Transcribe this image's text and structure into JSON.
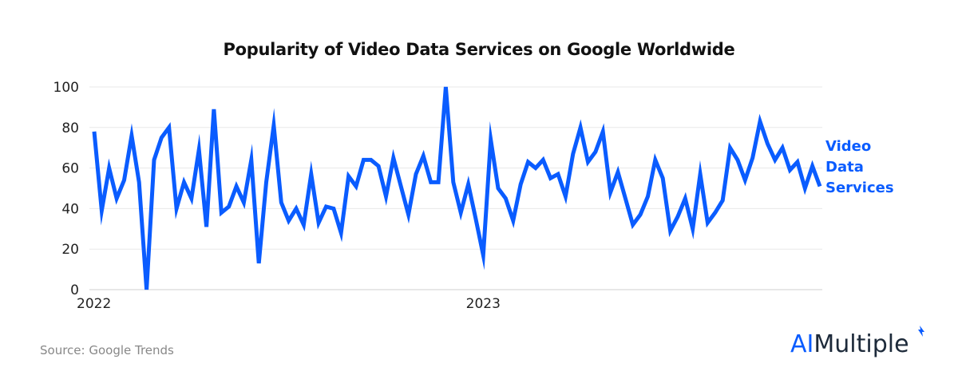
{
  "chart_data": {
    "type": "line",
    "title": "Popularity of Video Data Services on Google Worldwide",
    "xlabel": "",
    "ylabel": "",
    "ylim": [
      0,
      100
    ],
    "yticks": [
      "0",
      "20",
      "40",
      "60",
      "80",
      "100"
    ],
    "xtick_labels": [
      {
        "label": "2022",
        "index": 0
      },
      {
        "label": "2023",
        "index": 52
      }
    ],
    "grid": true,
    "legend": "right",
    "x_start": "2022-01-02",
    "x_interval": "weekly",
    "series": [
      {
        "name_lines": [
          "Video",
          "Data",
          "Services"
        ],
        "color": "#0a5cff",
        "values": [
          78,
          39,
          60,
          45,
          54,
          76,
          53,
          0,
          64,
          75,
          80,
          40,
          53,
          45,
          69,
          31,
          89,
          38,
          41,
          51,
          43,
          64,
          13,
          53,
          81,
          43,
          34,
          40,
          32,
          57,
          33,
          41,
          40,
          28,
          56,
          51,
          64,
          64,
          61,
          46,
          65,
          51,
          37,
          57,
          66,
          53,
          53,
          100,
          53,
          38,
          52,
          35,
          17,
          74,
          50,
          45,
          34,
          52,
          63,
          60,
          64,
          55,
          57,
          46,
          67,
          80,
          63,
          68,
          78,
          48,
          58,
          45,
          32,
          37,
          46,
          64,
          55,
          29,
          36,
          45,
          30,
          57,
          33,
          38,
          44,
          70,
          64,
          54,
          65,
          83,
          72,
          64,
          70,
          59,
          63,
          50,
          61,
          51
        ]
      }
    ]
  },
  "source": "Source: Google Trends",
  "logo": {
    "part1": "AI",
    "part2": "Multiple"
  }
}
